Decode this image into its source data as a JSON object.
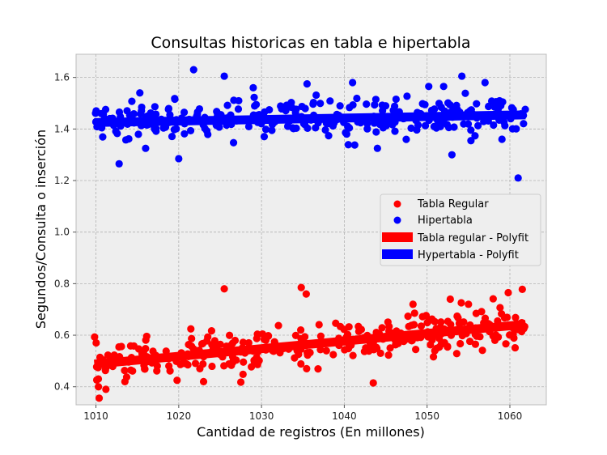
{
  "chart_data": {
    "type": "scatter",
    "title": "Consultas historicas en tabla e hipertabla",
    "xlabel": "Cantidad de registros (En millones)",
    "ylabel": "Segundos/Consulta o inserción",
    "xlim": [
      1007.6,
      1064.4
    ],
    "ylim": [
      0.33,
      1.69
    ],
    "x_ticks": [
      1010,
      1020,
      1030,
      1040,
      1050,
      1060
    ],
    "y_ticks": [
      0.4,
      0.6,
      0.8,
      1.0,
      1.2,
      1.4,
      1.6
    ],
    "x_tick_labels": [
      "1010",
      "1020",
      "1030",
      "1040",
      "1050",
      "1060"
    ],
    "y_tick_labels": [
      "0.4",
      "0.6",
      "0.8",
      "1.0",
      "1.2",
      "1.4",
      "1.6"
    ],
    "grid": true,
    "legend_position": "center-right",
    "x_range": [
      1009.8,
      1061.9
    ],
    "series": [
      {
        "name": "Tabla Regular",
        "kind": "points",
        "color": "#ff0000",
        "trend": [
          0.488,
          0.642
        ],
        "spread": 0.055,
        "count": 320,
        "outliers": [
          [
            1025.5,
            0.78
          ],
          [
            1034.8,
            0.785
          ],
          [
            1035.4,
            0.76
          ],
          [
            1061.5,
            0.778
          ],
          [
            1059.8,
            0.765
          ],
          [
            1011.2,
            0.39
          ],
          [
            1010.3,
            0.4
          ],
          [
            1043.5,
            0.415
          ],
          [
            1013.5,
            0.42
          ],
          [
            1019.8,
            0.425
          ],
          [
            1023.0,
            0.42
          ],
          [
            1027.5,
            0.418
          ],
          [
            1055.0,
            0.72
          ],
          [
            1048.3,
            0.72
          ],
          [
            1052.8,
            0.74
          ]
        ]
      },
      {
        "name": "Hipertabla",
        "kind": "points",
        "color": "#0000ff",
        "trend": [
          1.425,
          1.455
        ],
        "spread": 0.052,
        "count": 320,
        "outliers": [
          [
            1012.8,
            1.265
          ],
          [
            1020.0,
            1.285
          ],
          [
            1061.0,
            1.21
          ],
          [
            1021.8,
            1.63
          ],
          [
            1025.5,
            1.605
          ],
          [
            1054.2,
            1.605
          ],
          [
            1035.5,
            1.575
          ],
          [
            1050.2,
            1.565
          ],
          [
            1052.0,
            1.565
          ],
          [
            1057.0,
            1.58
          ],
          [
            1041.0,
            1.58
          ],
          [
            1029.0,
            1.56
          ],
          [
            1053.0,
            1.3
          ],
          [
            1016.0,
            1.325
          ],
          [
            1044.0,
            1.325
          ]
        ]
      },
      {
        "name": "Tabla regular - Polyfit",
        "kind": "fit",
        "color": "#ff0000",
        "x": [
          1009.8,
          1061.9
        ],
        "y": [
          0.488,
          0.642
        ]
      },
      {
        "name": "Hypertabla - Polyfit",
        "kind": "fit",
        "color": "#0000ff",
        "x": [
          1009.8,
          1061.9
        ],
        "y": [
          1.425,
          1.455
        ]
      }
    ]
  }
}
